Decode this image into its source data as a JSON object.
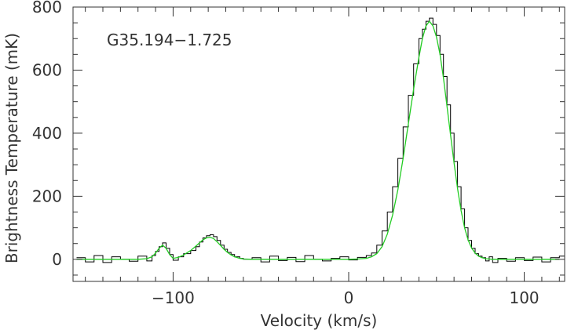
{
  "chart_data": {
    "type": "line",
    "title": "",
    "annotation": "G35.194−1.725",
    "xlabel": "Velocity (km/s)",
    "ylabel": "Brightness Temperature (mK)",
    "xlim": [
      -157,
      123
    ],
    "ylim": [
      -70,
      800
    ],
    "x_ticks": [
      -100,
      0,
      100
    ],
    "x_tick_labels": [
      "−100",
      "0",
      "100"
    ],
    "y_ticks": [
      0,
      200,
      400,
      600,
      800
    ],
    "y_tick_labels": [
      "0",
      "200",
      "400",
      "600",
      "800"
    ],
    "grid": false,
    "legend": "none",
    "series": [
      {
        "style": "step",
        "color": "#000000",
        "x": [
          -155,
          -150,
          -145,
          -140,
          -135,
          -130,
          -125,
          -120,
          -115,
          -112,
          -110,
          -108,
          -106,
          -104,
          -102,
          -100,
          -97,
          -94,
          -90,
          -87,
          -85,
          -83,
          -81,
          -79,
          -77,
          -75,
          -73,
          -71,
          -69,
          -67,
          -65,
          -62,
          -60,
          -55,
          -50,
          -45,
          -40,
          -35,
          -30,
          -25,
          -20,
          -15,
          -10,
          -5,
          0,
          5,
          10,
          13,
          16,
          19,
          22,
          25,
          28,
          31,
          34,
          37,
          40,
          42,
          44,
          46,
          48,
          50,
          52,
          54,
          56,
          58,
          60,
          62,
          64,
          66,
          68,
          70,
          72,
          74,
          76,
          78,
          80,
          82,
          85,
          90,
          95,
          100,
          105,
          110,
          115,
          120
        ],
        "values": [
          5,
          -8,
          12,
          -10,
          8,
          0,
          -6,
          10,
          -5,
          12,
          25,
          40,
          52,
          35,
          15,
          -3,
          8,
          18,
          28,
          40,
          55,
          68,
          75,
          78,
          72,
          60,
          45,
          32,
          22,
          15,
          8,
          3,
          0,
          5,
          -8,
          10,
          -4,
          6,
          -7,
          12,
          0,
          -5,
          3,
          8,
          -2,
          6,
          12,
          20,
          45,
          90,
          150,
          230,
          320,
          420,
          520,
          620,
          700,
          730,
          755,
          765,
          745,
          710,
          650,
          580,
          490,
          400,
          310,
          230,
          160,
          100,
          60,
          35,
          18,
          10,
          5,
          -5,
          8,
          -10,
          3,
          -6,
          5,
          -4,
          7,
          -8,
          5,
          10
        ]
      },
      {
        "style": "line",
        "color": "#22cc22",
        "x": [
          -155,
          -150,
          -145,
          -140,
          -135,
          -130,
          -125,
          -120,
          -115,
          -112,
          -110,
          -108,
          -106,
          -104,
          -102,
          -100,
          -97,
          -94,
          -90,
          -87,
          -85,
          -83,
          -81,
          -79,
          -77,
          -75,
          -73,
          -71,
          -69,
          -67,
          -65,
          -62,
          -60,
          -55,
          -50,
          -45,
          -40,
          -35,
          -30,
          -25,
          -20,
          -15,
          -10,
          -5,
          0,
          5,
          10,
          13,
          16,
          19,
          22,
          25,
          28,
          31,
          34,
          37,
          40,
          42,
          44,
          46,
          48,
          50,
          52,
          54,
          56,
          58,
          60,
          62,
          64,
          66,
          68,
          70,
          72,
          74,
          76,
          78,
          80,
          82,
          85,
          90,
          95,
          100,
          105,
          110,
          115,
          120
        ],
        "values": [
          0,
          0,
          0,
          0,
          0,
          0,
          0,
          0,
          2,
          8,
          20,
          35,
          45,
          35,
          15,
          3,
          6,
          14,
          28,
          42,
          52,
          62,
          68,
          70,
          66,
          56,
          44,
          32,
          22,
          14,
          8,
          3,
          1,
          0,
          0,
          0,
          0,
          0,
          0,
          0,
          0,
          0,
          0,
          0,
          0,
          1,
          3,
          8,
          18,
          40,
          80,
          140,
          220,
          320,
          430,
          540,
          640,
          700,
          740,
          755,
          740,
          705,
          650,
          575,
          485,
          395,
          305,
          225,
          155,
          100,
          62,
          36,
          20,
          10,
          5,
          2,
          1,
          0,
          0,
          0,
          0,
          0,
          0,
          0,
          0,
          0
        ]
      }
    ]
  }
}
